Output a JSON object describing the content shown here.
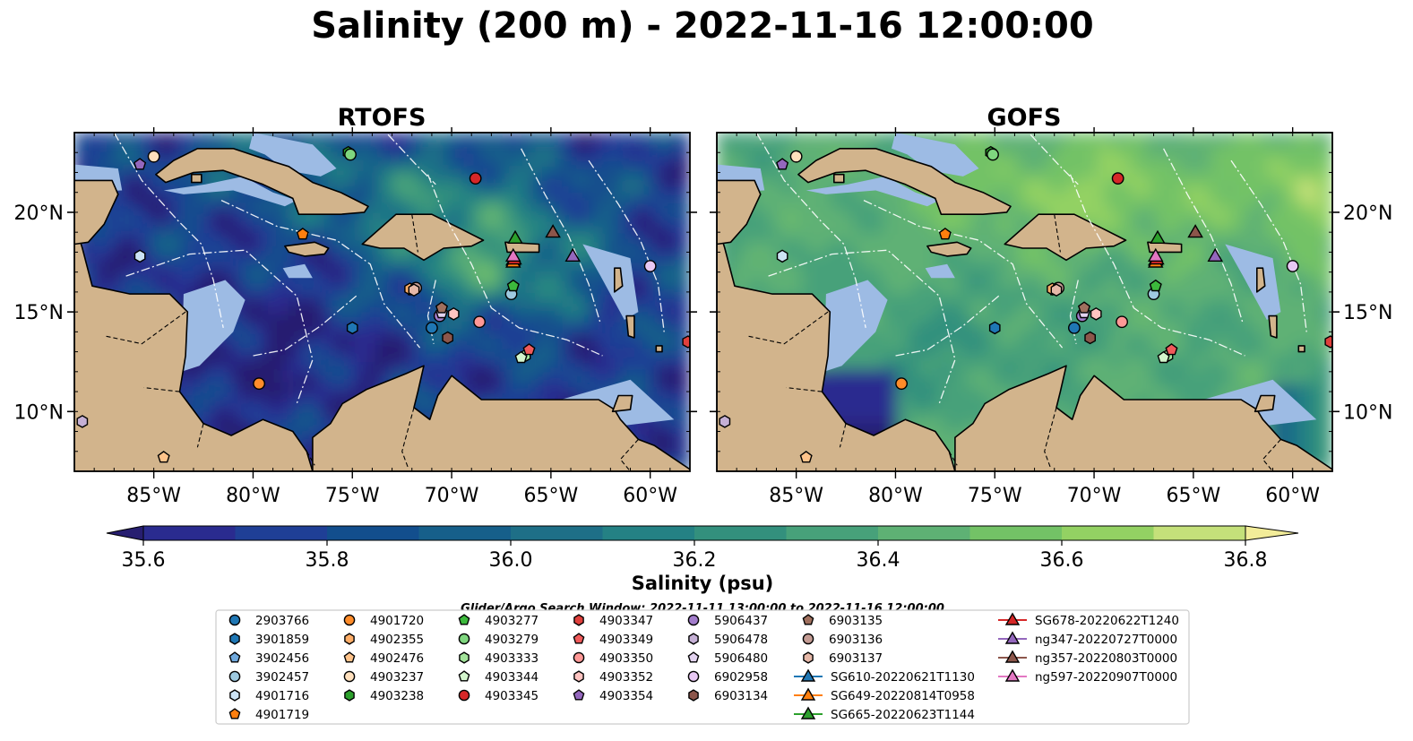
{
  "title": "Salinity (200 m) - 2022-11-16 12:00:00",
  "panels": [
    {
      "title": "RTOFS",
      "model": "rtofs"
    },
    {
      "title": "GOFS",
      "model": "gofs"
    }
  ],
  "axes": {
    "lon_range": [
      -89,
      -58
    ],
    "lat_range": [
      7,
      24
    ],
    "lon_ticks": [
      -85,
      -80,
      -75,
      -70,
      -65,
      -60
    ],
    "lon_tick_labels": [
      "85°W",
      "80°W",
      "75°W",
      "70°W",
      "65°W",
      "60°W"
    ],
    "lat_ticks": [
      10,
      15,
      20
    ],
    "lat_tick_labels": [
      "10°N",
      "15°N",
      "20°N"
    ]
  },
  "colorbar": {
    "label": "Salinity (psu)",
    "min": 35.5,
    "max": 36.9,
    "step": 0.1,
    "extend": "both",
    "ticks": [
      35.6,
      35.8,
      36.0,
      36.2,
      36.4,
      36.6,
      36.8
    ],
    "tick_labels": [
      "35.6",
      "35.8",
      "36.0",
      "36.2",
      "36.4",
      "36.6",
      "36.8"
    ],
    "colors": [
      "#271e70",
      "#2a2b8f",
      "#1f3f96",
      "#124e8d",
      "#165f8a",
      "#1e6f87",
      "#248184",
      "#33907d",
      "#47a17a",
      "#5eb174",
      "#73c266",
      "#93d163",
      "#c4e07a",
      "#f2ec99"
    ]
  },
  "search_window": "Glider/Argo Search Window: 2022-11-11 13:00:00 to 2022-11-16 12:00:00",
  "colors": {
    "land": "#d2b48c",
    "shelf": "#9dbbe4",
    "frame": "#000000"
  },
  "legend": [
    {
      "label": "2903766",
      "marker": "circle",
      "color": "#1f77b4"
    },
    {
      "label": "3901859",
      "marker": "hexagon",
      "color": "#1f77b4"
    },
    {
      "label": "3902456",
      "marker": "pentagon",
      "color": "#6fa8dc"
    },
    {
      "label": "3902457",
      "marker": "circle",
      "color": "#9ecae1"
    },
    {
      "label": "4901716",
      "marker": "hexagon",
      "color": "#cce3f5"
    },
    {
      "label": "4901719",
      "marker": "pentagon",
      "color": "#ff7f0e"
    },
    {
      "label": "4901720",
      "marker": "circle",
      "color": "#ff8c2a"
    },
    {
      "label": "4902355",
      "marker": "hexagon",
      "color": "#ffae68"
    },
    {
      "label": "4902476",
      "marker": "pentagon",
      "color": "#ffc38a"
    },
    {
      "label": "4903237",
      "marker": "circle",
      "color": "#ffe0bd"
    },
    {
      "label": "4903238",
      "marker": "hexagon",
      "color": "#2ca02c"
    },
    {
      "label": "4903277",
      "marker": "pentagon",
      "color": "#3cb93c"
    },
    {
      "label": "4903279",
      "marker": "circle",
      "color": "#7fd67f"
    },
    {
      "label": "4903333",
      "marker": "hexagon",
      "color": "#a3e49b"
    },
    {
      "label": "4903344",
      "marker": "pentagon",
      "color": "#d3f5cc"
    },
    {
      "label": "4903345",
      "marker": "circle",
      "color": "#d62728"
    },
    {
      "label": "4903347",
      "marker": "hexagon",
      "color": "#e0403c"
    },
    {
      "label": "4903349",
      "marker": "pentagon",
      "color": "#f05a5a"
    },
    {
      "label": "4903350",
      "marker": "circle",
      "color": "#ff9896"
    },
    {
      "label": "4903352",
      "marker": "hexagon",
      "color": "#ffc4c1"
    },
    {
      "label": "4903354",
      "marker": "pentagon",
      "color": "#9467bd"
    },
    {
      "label": "5906437",
      "marker": "circle",
      "color": "#a27ccb"
    },
    {
      "label": "5906478",
      "marker": "hexagon",
      "color": "#c5b0d5"
    },
    {
      "label": "5906480",
      "marker": "pentagon",
      "color": "#e3d3f0"
    },
    {
      "label": "6902958",
      "marker": "circle",
      "color": "#e8c8f4"
    },
    {
      "label": "6903134",
      "marker": "hexagon",
      "color": "#8c564b"
    },
    {
      "label": "6903135",
      "marker": "pentagon",
      "color": "#a0705e"
    },
    {
      "label": "6903136",
      "marker": "circle",
      "color": "#c49c94"
    },
    {
      "label": "6903137",
      "marker": "hexagon",
      "color": "#e6b8a8"
    },
    {
      "label": "SG610-20220621T1130",
      "marker": "triangle",
      "color": "#1f77b4",
      "line": true
    },
    {
      "label": "SG649-20220814T0958",
      "marker": "triangle",
      "color": "#ff7f0e",
      "line": true
    },
    {
      "label": "SG665-20220623T1144",
      "marker": "triangle",
      "color": "#2ca02c",
      "line": true
    },
    {
      "label": "SG678-20220622T1240",
      "marker": "triangle",
      "color": "#d62728",
      "line": true
    },
    {
      "label": "ng347-20220727T0000",
      "marker": "triangle",
      "color": "#9467bd",
      "line": true
    },
    {
      "label": "ng357-20220803T0000",
      "marker": "triangle",
      "color": "#8c564b",
      "line": true
    },
    {
      "label": "ng597-20220907T0000",
      "marker": "triangle",
      "color": "#e377c2",
      "line": true
    }
  ],
  "platforms": [
    {
      "label": "2903766",
      "lon": -71.0,
      "lat": 14.2
    },
    {
      "label": "3901859",
      "lon": -75.0,
      "lat": 14.2
    },
    {
      "label": "3902456",
      "lon": -72.0,
      "lat": 16.1
    },
    {
      "label": "3902457",
      "lon": -67.0,
      "lat": 15.9
    },
    {
      "label": "4901716",
      "lon": -85.7,
      "lat": 17.8
    },
    {
      "label": "4901719",
      "lon": -77.5,
      "lat": 18.9
    },
    {
      "label": "4901720",
      "lon": -79.7,
      "lat": 11.4
    },
    {
      "label": "4902355",
      "lon": -72.1,
      "lat": 16.15
    },
    {
      "label": "4902476",
      "lon": -84.5,
      "lat": 7.7
    },
    {
      "label": "4903237",
      "lon": -85.0,
      "lat": 22.8
    },
    {
      "label": "4903238",
      "lon": -75.2,
      "lat": 23.0
    },
    {
      "label": "4903277",
      "lon": -66.9,
      "lat": 16.3
    },
    {
      "label": "4903279",
      "lon": -75.1,
      "lat": 22.9
    },
    {
      "label": "4903333",
      "lon": -66.3,
      "lat": 12.8
    },
    {
      "label": "4903344",
      "lon": -66.5,
      "lat": 12.7
    },
    {
      "label": "4903345",
      "lon": -68.8,
      "lat": 21.7
    },
    {
      "label": "4903347",
      "lon": -58.1,
      "lat": 13.5
    },
    {
      "label": "4903349",
      "lon": -66.1,
      "lat": 13.1
    },
    {
      "label": "4903350",
      "lon": -68.6,
      "lat": 14.5
    },
    {
      "label": "4903352",
      "lon": -69.9,
      "lat": 14.9
    },
    {
      "label": "4903354",
      "lon": -85.7,
      "lat": 22.4
    },
    {
      "label": "5906437",
      "lon": -70.6,
      "lat": 14.8
    },
    {
      "label": "5906478",
      "lon": -88.6,
      "lat": 9.5
    },
    {
      "label": "5906480",
      "lon": -70.5,
      "lat": 14.95
    },
    {
      "label": "6902958",
      "lon": -60.0,
      "lat": 17.3
    },
    {
      "label": "6903134",
      "lon": -70.2,
      "lat": 13.7
    },
    {
      "label": "6903135",
      "lon": -70.5,
      "lat": 15.2
    },
    {
      "label": "6903136",
      "lon": -71.8,
      "lat": 16.2
    },
    {
      "label": "6903137",
      "lon": -71.9,
      "lat": 16.1
    },
    {
      "label": "SG610-20220621T1130",
      "lon": -66.9,
      "lat": 17.6
    },
    {
      "label": "SG649-20220814T0958",
      "lon": -66.9,
      "lat": 17.5
    },
    {
      "label": "SG665-20220623T1144",
      "lon": -66.8,
      "lat": 18.7
    },
    {
      "label": "SG678-20220622T1240",
      "lon": -66.85,
      "lat": 17.65
    },
    {
      "label": "ng347-20220727T0000",
      "lon": -63.9,
      "lat": 17.8
    },
    {
      "label": "ng357-20220803T0000",
      "lon": -64.9,
      "lat": 19.0
    },
    {
      "label": "ng597-20220907T0000",
      "lon": -66.9,
      "lat": 17.8
    }
  ]
}
